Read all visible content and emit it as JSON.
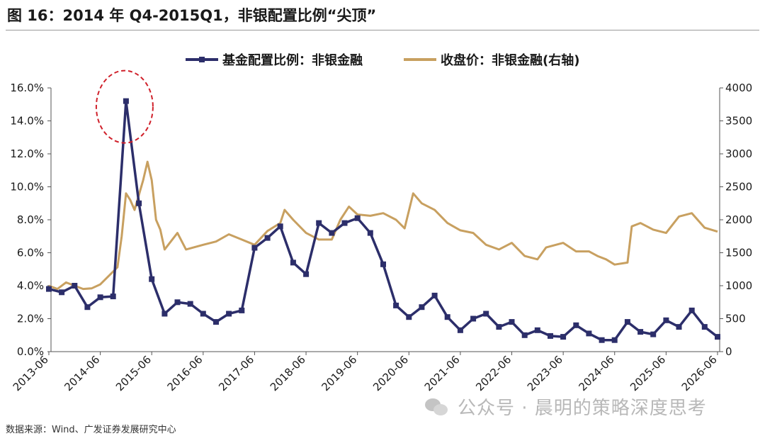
{
  "title": "图 16：2014 年 Q4-2015Q1，非银配置比例“尖顶”",
  "source": "数据来源：Wind、广发证券发展研究中心",
  "watermark": "公众号 · 晨明的策略深度思考",
  "colors": {
    "fund": "#2c2e6a",
    "price": "#c8a060",
    "annotation": "#d0202a",
    "axis": "#555555"
  },
  "chart_data": {
    "type": "line",
    "grid": false,
    "legend_position": "top-center",
    "x_tick_labels": [
      "2013-06",
      "2014-06",
      "2015-06",
      "2016-06",
      "2017-06",
      "2018-06",
      "2019-06",
      "2020-06",
      "2021-06",
      "2022-06",
      "2023-06",
      "2024-06",
      "2025-06",
      "2026-06"
    ],
    "y_left": {
      "ticks": [
        "0.0%",
        "2.0%",
        "4.0%",
        "6.0%",
        "8.0%",
        "10.0%",
        "12.0%",
        "14.0%",
        "16.0%"
      ],
      "range": [
        0,
        16
      ]
    },
    "y_right": {
      "ticks": [
        "0",
        "500",
        "1000",
        "1500",
        "2000",
        "2500",
        "3000",
        "3500",
        "4000"
      ],
      "range": [
        0,
        4000
      ]
    },
    "series": [
      {
        "name": "基金配置比例：非银金融",
        "axis": "left",
        "marker": "square",
        "x": [
          "2013-06",
          "2013-09",
          "2013-12",
          "2014-03",
          "2014-06",
          "2014-09",
          "2014-12",
          "2015-03",
          "2015-06",
          "2015-09",
          "2015-12",
          "2016-03",
          "2016-06",
          "2016-09",
          "2016-12",
          "2017-03",
          "2017-06",
          "2017-09",
          "2017-12",
          "2018-03",
          "2018-06",
          "2018-09",
          "2018-12",
          "2019-03",
          "2019-06",
          "2019-09",
          "2019-12",
          "2020-03",
          "2020-06",
          "2020-09",
          "2020-12",
          "2021-03",
          "2021-06",
          "2021-09",
          "2021-12",
          "2022-03",
          "2022-06",
          "2022-09",
          "2022-12",
          "2023-03",
          "2023-06",
          "2023-09",
          "2023-12",
          "2024-03",
          "2024-06",
          "2024-09",
          "2024-12",
          "2025-03",
          "2025-06",
          "2025-09",
          "2025-12",
          "2026-03",
          "2026-06"
        ],
        "values": [
          3.8,
          3.6,
          4.0,
          2.7,
          3.3,
          3.35,
          15.2,
          9.0,
          4.4,
          2.3,
          3.0,
          2.9,
          2.3,
          1.8,
          2.3,
          2.5,
          6.3,
          6.9,
          7.6,
          5.4,
          4.7,
          7.8,
          7.2,
          7.8,
          8.1,
          7.2,
          5.3,
          2.8,
          2.1,
          2.7,
          3.4,
          2.1,
          1.3,
          2.0,
          2.3,
          1.5,
          1.8,
          1.0,
          1.3,
          0.95,
          0.9,
          1.6,
          1.1,
          0.7,
          0.7,
          1.8,
          1.2,
          1.05,
          1.9,
          1.5,
          2.5,
          1.5,
          0.9
        ]
      },
      {
        "name": "收盘价：非银金融(右轴)",
        "axis": "right",
        "x": [
          "2013-06",
          "2013-08",
          "2013-10",
          "2013-12",
          "2014-02",
          "2014-04",
          "2014-06",
          "2014-08",
          "2014-10",
          "2014-11",
          "2014-12",
          "2015-01",
          "2015-02",
          "2015-04",
          "2015-05",
          "2015-06",
          "2015-07",
          "2015-08",
          "2015-09",
          "2015-12",
          "2016-02",
          "2016-06",
          "2016-09",
          "2016-12",
          "2017-03",
          "2017-06",
          "2017-09",
          "2017-12",
          "2018-01",
          "2018-03",
          "2018-06",
          "2018-09",
          "2018-12",
          "2019-02",
          "2019-04",
          "2019-06",
          "2019-09",
          "2019-12",
          "2020-03",
          "2020-05",
          "2020-07",
          "2020-09",
          "2020-12",
          "2021-03",
          "2021-06",
          "2021-09",
          "2021-12",
          "2022-03",
          "2022-06",
          "2022-09",
          "2022-12",
          "2023-02",
          "2023-06",
          "2023-09",
          "2023-12",
          "2024-02",
          "2024-04",
          "2024-06",
          "2024-09",
          "2024-10",
          "2024-12",
          "2025-03",
          "2025-06",
          "2025-09",
          "2025-12",
          "2026-03",
          "2026-06"
        ],
        "values": [
          1000,
          950,
          1050,
          1000,
          950,
          960,
          1020,
          1150,
          1280,
          1750,
          2400,
          2300,
          2150,
          2600,
          2880,
          2600,
          2000,
          1850,
          1550,
          1800,
          1550,
          1620,
          1670,
          1780,
          1700,
          1620,
          1830,
          1950,
          2150,
          2000,
          1800,
          1700,
          1700,
          2000,
          2200,
          2080,
          2060,
          2100,
          2000,
          1870,
          2400,
          2250,
          2150,
          1950,
          1840,
          1800,
          1620,
          1550,
          1650,
          1450,
          1400,
          1580,
          1650,
          1520,
          1520,
          1450,
          1400,
          1320,
          1350,
          1900,
          1950,
          1850,
          1800,
          2050,
          2100,
          1880,
          1820
        ]
      }
    ]
  }
}
